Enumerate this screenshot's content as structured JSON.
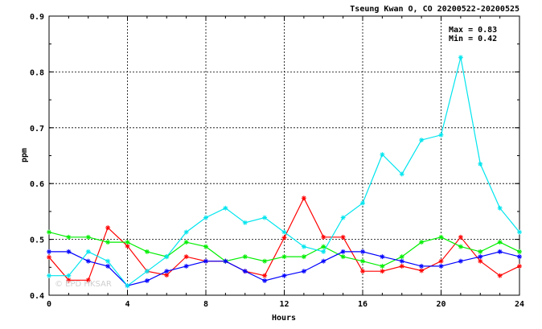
{
  "chart_data": {
    "type": "line",
    "title": "Tseung Kwan O, CO 20200522-20200525",
    "xlabel": "Hours",
    "ylabel": "ppm",
    "xlim": [
      0,
      24
    ],
    "ylim": [
      0.4,
      0.9
    ],
    "x_ticks": [
      0,
      4,
      8,
      12,
      16,
      20,
      24
    ],
    "y_ticks": [
      0.4,
      0.5,
      0.6,
      0.7,
      0.8,
      0.9
    ],
    "y_tick_labels": [
      "0.4",
      "0.5",
      "0.6",
      "0.7",
      "0.8",
      "0.9"
    ],
    "grid": true,
    "marker": "asterisk",
    "annotations": [
      "Max = 0.83",
      "Min = 0.42"
    ],
    "watermark": "© EPD HKSAR",
    "x": [
      0,
      1,
      2,
      3,
      4,
      5,
      6,
      7,
      8,
      9,
      10,
      11,
      12,
      13,
      14,
      15,
      16,
      17,
      18,
      19,
      20,
      21,
      22,
      23,
      24
    ],
    "series": [
      {
        "color": "#ff0000",
        "values": [
          0.468,
          0.427,
          0.427,
          0.521,
          0.488,
          0.443,
          0.436,
          0.469,
          0.461,
          0.461,
          0.443,
          0.435,
          0.503,
          0.574,
          0.504,
          0.504,
          0.443,
          0.443,
          0.452,
          0.444,
          0.461,
          0.504,
          0.461,
          0.435,
          0.452
        ]
      },
      {
        "color": "#00ee00",
        "values": [
          0.513,
          0.504,
          0.504,
          0.495,
          0.495,
          0.478,
          0.469,
          0.495,
          0.487,
          0.461,
          0.469,
          0.461,
          0.469,
          0.469,
          0.487,
          0.469,
          0.461,
          0.452,
          0.469,
          0.495,
          0.504,
          0.487,
          0.478,
          0.495,
          0.478
        ]
      },
      {
        "color": "#0000ff",
        "values": [
          0.478,
          0.478,
          0.461,
          0.452,
          0.417,
          0.426,
          0.443,
          0.452,
          0.461,
          0.461,
          0.443,
          0.426,
          0.435,
          0.443,
          0.461,
          0.478,
          0.478,
          0.469,
          0.461,
          0.452,
          0.452,
          0.461,
          0.469,
          0.478,
          0.469
        ]
      },
      {
        "color": "#00e5ee",
        "values": [
          0.435,
          0.435,
          0.478,
          0.461,
          0.417,
          0.443,
          0.469,
          0.513,
          0.539,
          0.556,
          0.53,
          0.539,
          0.513,
          0.487,
          0.478,
          0.539,
          0.565,
          0.652,
          0.617,
          0.678,
          0.687,
          0.826,
          0.635,
          0.556,
          0.513
        ]
      }
    ]
  }
}
